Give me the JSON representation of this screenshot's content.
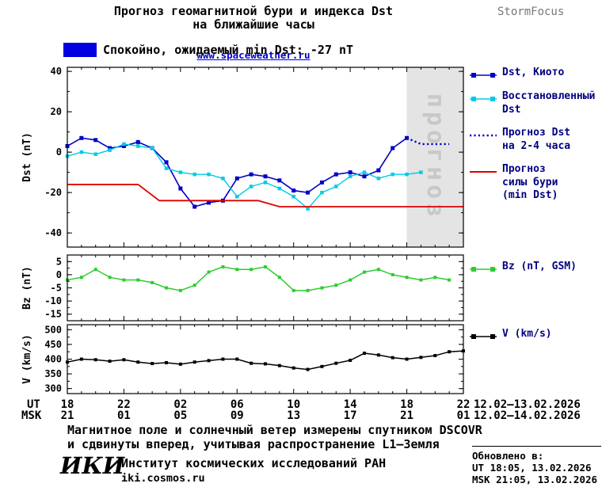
{
  "header": {
    "title_line1": "Прогноз геомагнитной бури и индекса Dst",
    "title_line2": "на ближайшие часы",
    "site_link": "www.spaceweather.ru",
    "brand": "StormFocus"
  },
  "status_banner": {
    "label": "Спокойно, ожидаемый min Dst: -27 nT"
  },
  "colors": {
    "kyoto": "#0000c8",
    "restored": "#00cce6",
    "forecast": "#0000c8",
    "storm": "#e00000",
    "bz": "#2ecc2e",
    "v": "#000000",
    "band": "#e4e4e4",
    "band_text": "#c8c8c8",
    "legend_text": "#000080",
    "link": "#0000cc",
    "banner_swatch": "#0000e0",
    "brand_text": "#777777"
  },
  "chart_data": [
    {
      "type": "line",
      "panel": "dst",
      "ylabel": "Dst (nT)",
      "ylim": [
        -47,
        42
      ],
      "yticks": [
        -40,
        -20,
        0,
        20,
        40
      ],
      "yminor_step": 10,
      "x_hours_lim": [
        0,
        28
      ],
      "x_tick_step_hours": 4,
      "forecast_band": {
        "from_hour": 24,
        "to_hour": 28,
        "label": "прогноз"
      },
      "series": [
        {
          "key": "kyoto",
          "name": "Dst, Киото",
          "color_key": "kyoto",
          "marker": true,
          "marker_size": 5,
          "width": 1.6,
          "x": [
            0,
            1,
            2,
            3,
            4,
            5,
            6,
            7,
            8,
            9,
            10,
            11,
            12,
            13,
            14,
            15,
            16,
            17,
            18,
            19,
            20,
            21,
            22,
            23,
            24
          ],
          "y": [
            3,
            7,
            6,
            2,
            3,
            5,
            2,
            -5,
            -18,
            -27,
            -25,
            -24,
            -13,
            -11,
            -12,
            -14,
            -19,
            -20,
            -15,
            -11,
            -10,
            -12,
            -9,
            2,
            7
          ]
        },
        {
          "key": "restored",
          "name": "Восстановленный Dst",
          "color_key": "restored",
          "marker": true,
          "marker_size": 4.5,
          "width": 1.4,
          "x": [
            0,
            1,
            2,
            3,
            4,
            5,
            6,
            7,
            8,
            9,
            10,
            11,
            12,
            13,
            14,
            15,
            16,
            17,
            18,
            19,
            20,
            21,
            22,
            23,
            24,
            25
          ],
          "y": [
            -2,
            0,
            -1,
            1,
            4,
            3,
            2,
            -8,
            -10,
            -11,
            -11,
            -13,
            -22,
            -17,
            -15,
            -18,
            -22,
            -28,
            -20,
            -17,
            -12,
            -10,
            -13,
            -11,
            -11,
            -10
          ]
        },
        {
          "key": "forecast",
          "name": "Прогноз Dst на 2-4 часа",
          "color_key": "forecast",
          "dotted": true,
          "width": 2.4,
          "x": [
            24,
            25,
            26,
            27
          ],
          "y": [
            7,
            4,
            4,
            4
          ]
        },
        {
          "key": "storm",
          "name": "Прогноз силы бури (min Dst)",
          "color_key": "storm",
          "width": 1.8,
          "x": [
            0,
            5,
            6.5,
            13.5,
            15,
            28
          ],
          "y": [
            -16,
            -16,
            -24,
            -24,
            -27,
            -27
          ]
        }
      ]
    },
    {
      "type": "line",
      "panel": "bz",
      "ylabel": "Bz (nT)",
      "ylim": [
        -17.5,
        7.5
      ],
      "yticks": [
        5,
        0,
        -5,
        -10,
        -15
      ],
      "yminor_step": 2.5,
      "x_hours_lim": [
        0,
        28
      ],
      "x_tick_step_hours": 4,
      "series": [
        {
          "key": "bz",
          "name": "Bz (nT, GSM)",
          "color_key": "bz",
          "marker": true,
          "marker_size": 4,
          "width": 1.5,
          "x": [
            0,
            1,
            2,
            3,
            4,
            5,
            6,
            7,
            8,
            9,
            10,
            11,
            12,
            13,
            14,
            15,
            16,
            17,
            18,
            19,
            20,
            21,
            22,
            23,
            24,
            25,
            26,
            27
          ],
          "y": [
            -2,
            -1,
            2,
            -1,
            -2,
            -2,
            -3,
            -5,
            -6,
            -4,
            1,
            3,
            2,
            2,
            3,
            -1,
            -6,
            -6,
            -5,
            -4,
            -2,
            1,
            2,
            0,
            -1,
            -2,
            -1,
            -2
          ]
        }
      ]
    },
    {
      "type": "line",
      "panel": "v",
      "ylabel": "V (km/s)",
      "ylim": [
        283,
        517
      ],
      "yticks": [
        300,
        350,
        400,
        450,
        500
      ],
      "yminor_step": 25,
      "x_hours_lim": [
        0,
        28
      ],
      "x_tick_step_hours": 4,
      "series": [
        {
          "key": "v",
          "name": "V (km/s)",
          "color_key": "v",
          "marker": true,
          "marker_size": 4,
          "width": 1.5,
          "x": [
            0,
            1,
            2,
            3,
            4,
            5,
            6,
            7,
            8,
            9,
            10,
            11,
            12,
            13,
            14,
            15,
            16,
            17,
            18,
            19,
            20,
            21,
            22,
            23,
            24,
            25,
            26,
            27,
            28
          ],
          "y": [
            390,
            400,
            398,
            393,
            398,
            390,
            385,
            388,
            383,
            390,
            395,
            400,
            400,
            386,
            384,
            378,
            370,
            365,
            375,
            386,
            396,
            420,
            414,
            405,
            400,
            406,
            412,
            425,
            428
          ]
        }
      ]
    }
  ],
  "xaxis": {
    "ut_label": "UT",
    "msk_label": "MSK",
    "ut_ticks": [
      "18",
      "22",
      "02",
      "06",
      "10",
      "14",
      "18",
      "22"
    ],
    "msk_ticks": [
      "21",
      "01",
      "05",
      "09",
      "13",
      "17",
      "21",
      "01"
    ],
    "ut_range": "12.02–13.02.2026",
    "msk_range": "12.02–14.02.2026"
  },
  "legend": {
    "items": [
      {
        "key": "kyoto",
        "label": "Dst, Киото"
      },
      {
        "key": "restored",
        "label": "Восстановленный\nDst"
      },
      {
        "key": "forecast",
        "label": "Прогноз Dst\nна 2-4 часа"
      },
      {
        "key": "storm",
        "label": "Прогноз\nсилы бури\n(min Dst)"
      },
      {
        "key": "bz",
        "label": "Bz (nT, GSM)"
      },
      {
        "key": "v",
        "label": "V (km/s)"
      }
    ]
  },
  "footer": {
    "note_line1": "Магнитное поле и солнечный ветер измерены спутником DSCOVR",
    "note_line2": "и сдвинуты вперед, учитывая распространение L1–Земля",
    "logo": "ИКИ",
    "institute": "Институт космических исследований РАН",
    "institute_site": "iki.cosmos.ru",
    "updated_label": "Обновлено в:",
    "updated_ut": "UT  18:05, 13.02.2026",
    "updated_msk": "MSK 21:05, 13.02.2026"
  }
}
